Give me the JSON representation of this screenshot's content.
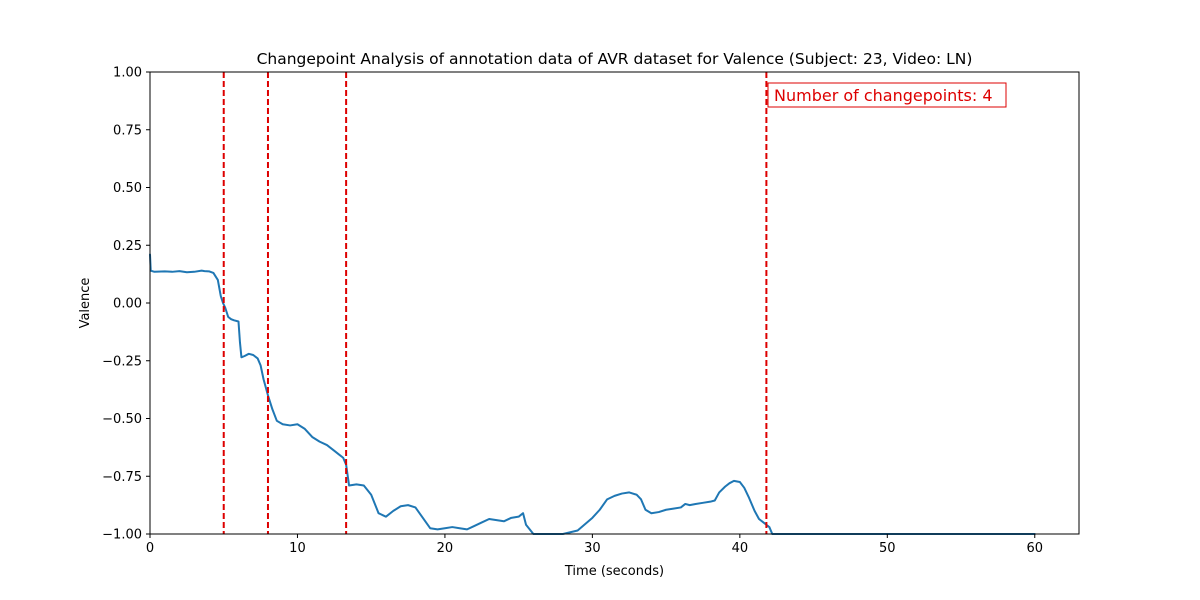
{
  "chart_data": {
    "type": "line",
    "title": "Changepoint Analysis of annotation data of AVR dataset for Valence (Subject: 23, Video: LN)",
    "xlabel": "Time (seconds)",
    "ylabel": "Valence",
    "xlim": [
      0,
      63
    ],
    "ylim": [
      -1.0,
      1.0
    ],
    "xticks": [
      0,
      10,
      20,
      30,
      40,
      50,
      60
    ],
    "xtick_labels": [
      "0",
      "10",
      "20",
      "30",
      "40",
      "50",
      "60"
    ],
    "yticks": [
      -1.0,
      -0.75,
      -0.5,
      -0.25,
      0.0,
      0.25,
      0.5,
      0.75,
      1.0
    ],
    "ytick_labels": [
      "−1.00",
      "−0.75",
      "−0.50",
      "−0.25",
      "0.00",
      "0.25",
      "0.50",
      "0.75",
      "1.00"
    ],
    "grid": false,
    "line_color": "#1f77b4",
    "changepoint_color": "#dd0000",
    "changepoints": [
      5.0,
      8.0,
      13.3,
      41.8
    ],
    "annotation": "Number of changepoints: 4",
    "series": [
      {
        "x": [
          0,
          0.05,
          0.3,
          1,
          1.5,
          2,
          2.5,
          3,
          3.5,
          3.7,
          4,
          4.3,
          4.6,
          4.8,
          4.95,
          5.1,
          5.3,
          5.5,
          5.7,
          6.0,
          6.1,
          6.2,
          6.4,
          6.7,
          7.0,
          7.3,
          7.5,
          7.7,
          8.0,
          8.3,
          8.6,
          9.0,
          9.5,
          10.0,
          10.5,
          11.0,
          11.5,
          12.0,
          12.5,
          12.8,
          13.1,
          13.3,
          13.5,
          14.0,
          14.5,
          15.0,
          15.5,
          16.0,
          16.5,
          17.0,
          17.5,
          18.0,
          18.5,
          19.0,
          19.5,
          20.0,
          20.5,
          21.0,
          21.5,
          22.0,
          22.5,
          23.0,
          23.5,
          24.0,
          24.5,
          25.0,
          25.3,
          25.5,
          26.0,
          27.0,
          28.0,
          29.0,
          30.0,
          30.5,
          31.0,
          31.5,
          32.0,
          32.5,
          33.0,
          33.3,
          33.6,
          34.0,
          34.5,
          35.0,
          35.5,
          36.0,
          36.3,
          36.6,
          37.0,
          37.5,
          38.0,
          38.3,
          38.6,
          39.0,
          39.3,
          39.6,
          40.0,
          40.3,
          40.6,
          41.0,
          41.3,
          41.6,
          41.8,
          42.0,
          42.2,
          43.0,
          50.0,
          60.0
        ],
        "y": [
          0.21,
          0.14,
          0.135,
          0.137,
          0.135,
          0.138,
          0.133,
          0.135,
          0.14,
          0.138,
          0.137,
          0.13,
          0.1,
          0.03,
          0.0,
          -0.02,
          -0.06,
          -0.07,
          -0.075,
          -0.08,
          -0.17,
          -0.235,
          -0.23,
          -0.22,
          -0.225,
          -0.24,
          -0.27,
          -0.33,
          -0.4,
          -0.46,
          -0.51,
          -0.525,
          -0.53,
          -0.525,
          -0.545,
          -0.58,
          -0.6,
          -0.615,
          -0.64,
          -0.655,
          -0.67,
          -0.7,
          -0.79,
          -0.785,
          -0.79,
          -0.83,
          -0.91,
          -0.925,
          -0.9,
          -0.88,
          -0.875,
          -0.885,
          -0.93,
          -0.975,
          -0.98,
          -0.975,
          -0.97,
          -0.975,
          -0.98,
          -0.965,
          -0.95,
          -0.935,
          -0.94,
          -0.945,
          -0.93,
          -0.925,
          -0.91,
          -0.96,
          -1.0,
          -1.0,
          -1.0,
          -0.985,
          -0.93,
          -0.895,
          -0.85,
          -0.835,
          -0.825,
          -0.82,
          -0.83,
          -0.85,
          -0.895,
          -0.91,
          -0.905,
          -0.895,
          -0.89,
          -0.885,
          -0.87,
          -0.875,
          -0.87,
          -0.865,
          -0.86,
          -0.855,
          -0.82,
          -0.795,
          -0.78,
          -0.77,
          -0.775,
          -0.8,
          -0.84,
          -0.9,
          -0.935,
          -0.95,
          -0.96,
          -0.97,
          -1.0,
          -1.0,
          -1.0,
          -1.0
        ]
      }
    ]
  }
}
